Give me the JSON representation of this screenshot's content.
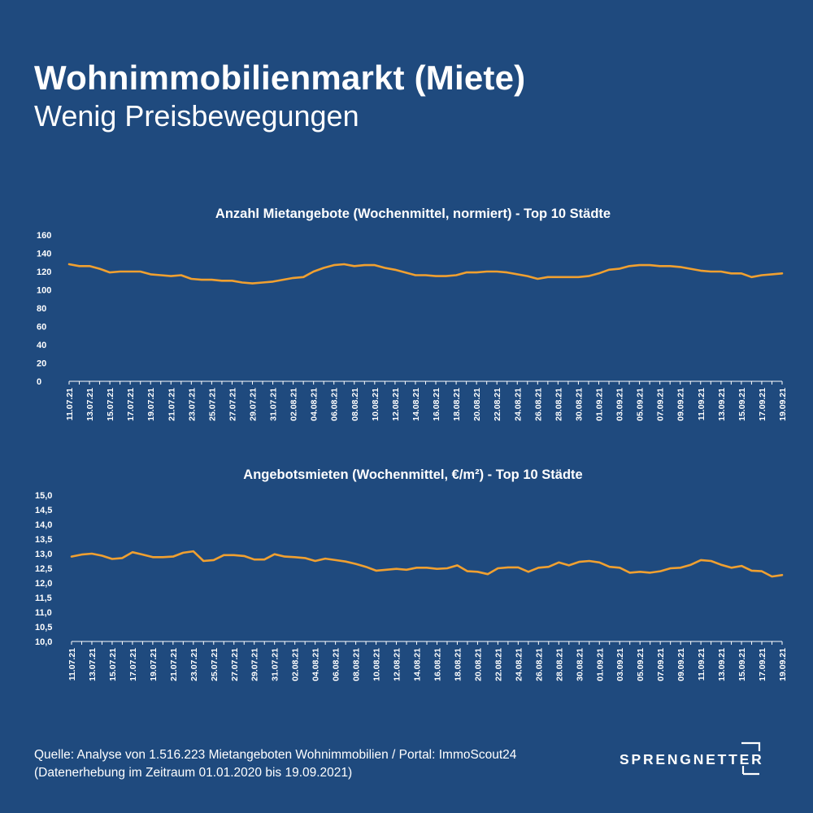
{
  "header": {
    "title": "Wohnimmobilienmarkt (Miete)",
    "subtitle": "Wenig Preisbewegungen"
  },
  "footer": {
    "source_line1": "Quelle: Analyse von 1.516.223 Mietangeboten Wohnimmobilien / Portal: ImmoScout24",
    "source_line2": "(Datenerhebung im Zeitraum 01.01.2020 bis  19.09.2021)"
  },
  "logo": {
    "text": "SPRENGNETTER"
  },
  "colors": {
    "background": "#1f4a7e",
    "line": "#f0a030",
    "text": "#ffffff"
  },
  "chart_data": [
    {
      "type": "line",
      "title": "Anzahl Mietangebote (Wochenmittel, normiert) - Top 10 Städte",
      "xlabel": "",
      "ylabel": "",
      "ylim": [
        0,
        160
      ],
      "yticks": [
        "0",
        "20",
        "40",
        "60",
        "80",
        "100",
        "120",
        "140",
        "160"
      ],
      "x_tick_labels": [
        "11.07.21",
        "13.07.21",
        "15.07.21",
        "17.07.21",
        "19.07.21",
        "21.07.21",
        "23.07.21",
        "25.07.21",
        "27.07.21",
        "29.07.21",
        "31.07.21",
        "02.08.21",
        "04.08.21",
        "06.08.21",
        "08.08.21",
        "10.08.21",
        "12.08.21",
        "14.08.21",
        "16.08.21",
        "18.08.21",
        "20.08.21",
        "22.08.21",
        "24.08.21",
        "26.08.21",
        "28.08.21",
        "30.08.21",
        "01.09.21",
        "03.09.21",
        "05.09.21",
        "07.09.21",
        "09.09.21",
        "11.09.21",
        "13.09.21",
        "15.09.21",
        "17.09.21",
        "19.09.21"
      ],
      "x_start": "11.07.21",
      "x_end": "19.09.21",
      "grid": false,
      "series": [
        {
          "values": [
            128,
            126,
            126,
            123,
            119,
            120,
            120,
            120,
            117,
            116,
            115,
            116,
            112,
            111,
            111,
            110,
            110,
            108,
            107,
            108,
            109,
            111,
            113,
            114,
            120,
            124,
            127,
            128,
            126,
            127,
            127,
            124,
            122,
            119,
            116,
            116,
            115,
            115,
            116,
            119,
            119,
            120,
            120,
            119,
            117,
            115,
            112,
            114,
            114,
            114,
            114,
            115,
            118,
            122,
            123,
            126,
            127,
            127,
            126,
            126,
            125,
            123,
            121,
            120,
            120,
            118,
            118,
            114,
            116,
            117,
            118
          ]
        }
      ]
    },
    {
      "type": "line",
      "title": "Angebotsmieten (Wochenmittel, €/m²) - Top 10 Städte",
      "xlabel": "",
      "ylabel": "",
      "ylim": [
        10,
        15
      ],
      "yticks": [
        "10,0",
        "10,5",
        "11,0",
        "11,5",
        "12,0",
        "12,5",
        "13,0",
        "13,5",
        "14,0",
        "14,5",
        "15,0"
      ],
      "x_tick_labels": [
        "11.07.21",
        "13.07.21",
        "15.07.21",
        "17.07.21",
        "19.07.21",
        "21.07.21",
        "23.07.21",
        "25.07.21",
        "27.07.21",
        "29.07.21",
        "31.07.21",
        "02.08.21",
        "04.08.21",
        "06.08.21",
        "08.08.21",
        "10.08.21",
        "12.08.21",
        "14.08.21",
        "16.08.21",
        "18.08.21",
        "20.08.21",
        "22.08.21",
        "24.08.21",
        "26.08.21",
        "28.08.21",
        "30.08.21",
        "01.09.21",
        "03.09.21",
        "05.09.21",
        "07.09.21",
        "09.09.21",
        "11.09.21",
        "13.09.21",
        "15.09.21",
        "17.09.21",
        "19.09.21"
      ],
      "x_start": "11.07.21",
      "x_end": "19.09.21",
      "grid": false,
      "series": [
        {
          "values": [
            12.9,
            12.97,
            13.0,
            12.93,
            12.82,
            12.85,
            13.05,
            12.97,
            12.88,
            12.88,
            12.9,
            13.03,
            13.08,
            12.75,
            12.78,
            12.95,
            12.95,
            12.92,
            12.8,
            12.8,
            12.98,
            12.9,
            12.88,
            12.85,
            12.75,
            12.83,
            12.78,
            12.73,
            12.65,
            12.55,
            12.42,
            12.45,
            12.48,
            12.45,
            12.52,
            12.52,
            12.48,
            12.5,
            12.6,
            12.4,
            12.38,
            12.3,
            12.5,
            12.53,
            12.53,
            12.38,
            12.52,
            12.55,
            12.7,
            12.6,
            12.72,
            12.75,
            12.7,
            12.55,
            12.52,
            12.35,
            12.38,
            12.35,
            12.4,
            12.5,
            12.52,
            12.62,
            12.78,
            12.75,
            12.62,
            12.52,
            12.58,
            12.42,
            12.4,
            12.22,
            12.27
          ]
        }
      ]
    }
  ]
}
